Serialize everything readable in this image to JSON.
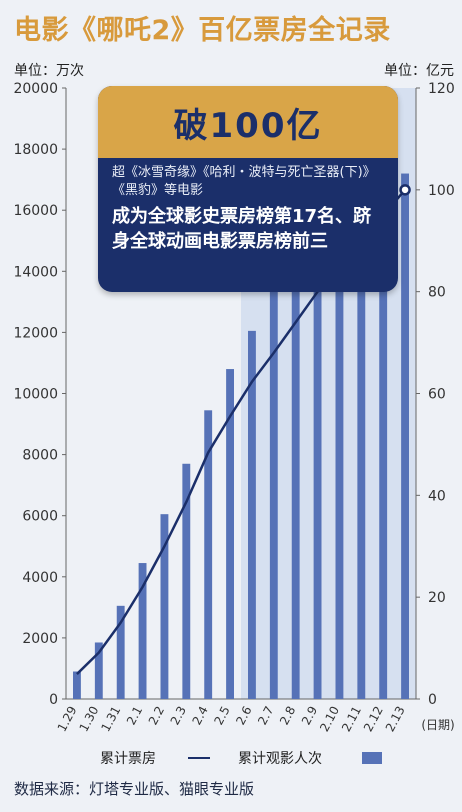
{
  "title": "电影《哪吒2》百亿票房全记录",
  "unit_left": "单位：万次",
  "unit_right": "单位：亿元",
  "callout": {
    "headline": "破100亿",
    "sub": "超《冰雪奇缘》《哈利・波特与死亡圣器(下)》《黑豹》等电影",
    "main": "成为全球影史票房榜第17名、跻身全球动画电影票房榜前三"
  },
  "legend": {
    "line_label": "累计票房",
    "bar_label": "累计观影人次"
  },
  "source": "数据来源：灯塔专业版、猫眼专业版",
  "colors": {
    "title": "#d89a3c",
    "bar": "#5672b7",
    "line": "#1b2f6a",
    "callout_head": "#d9a548",
    "callout_body": "#1b2f6a"
  },
  "chart_data": {
    "type": "bar",
    "x_unit_label": "(日期)",
    "categories": [
      "1.29",
      "1.30",
      "1.31",
      "2.1",
      "2.2",
      "2.3",
      "2.4",
      "2.5",
      "2.6",
      "2.7",
      "2.8",
      "2.9",
      "2.10",
      "2.11",
      "2.12",
      "2.13"
    ],
    "series": [
      {
        "name": "累计观影人次",
        "type": "bar",
        "axis": "left",
        "values": [
          900,
          1850,
          3050,
          4450,
          6050,
          7700,
          9450,
          10800,
          12050,
          14200,
          15000,
          15600,
          16100,
          16500,
          16800,
          17200
        ]
      },
      {
        "name": "累计票房",
        "type": "line",
        "axis": "right",
        "values": [
          4.9,
          9.1,
          15.0,
          22.0,
          30.0,
          38.7,
          48.4,
          55.5,
          62.3,
          68.0,
          74.0,
          80.0,
          85.0,
          89.0,
          95.0,
          100.0
        ]
      }
    ],
    "yleft_lim": [
      0,
      20000
    ],
    "yleft_ticks": [
      0,
      2000,
      4000,
      6000,
      8000,
      10000,
      12000,
      14000,
      16000,
      18000,
      20000
    ],
    "yright_lim": [
      0,
      120
    ],
    "yright_ticks": [
      0,
      20,
      40,
      60,
      80,
      100,
      120
    ],
    "shaded_range": [
      "2.6",
      "2.13"
    ],
    "grid": false
  }
}
